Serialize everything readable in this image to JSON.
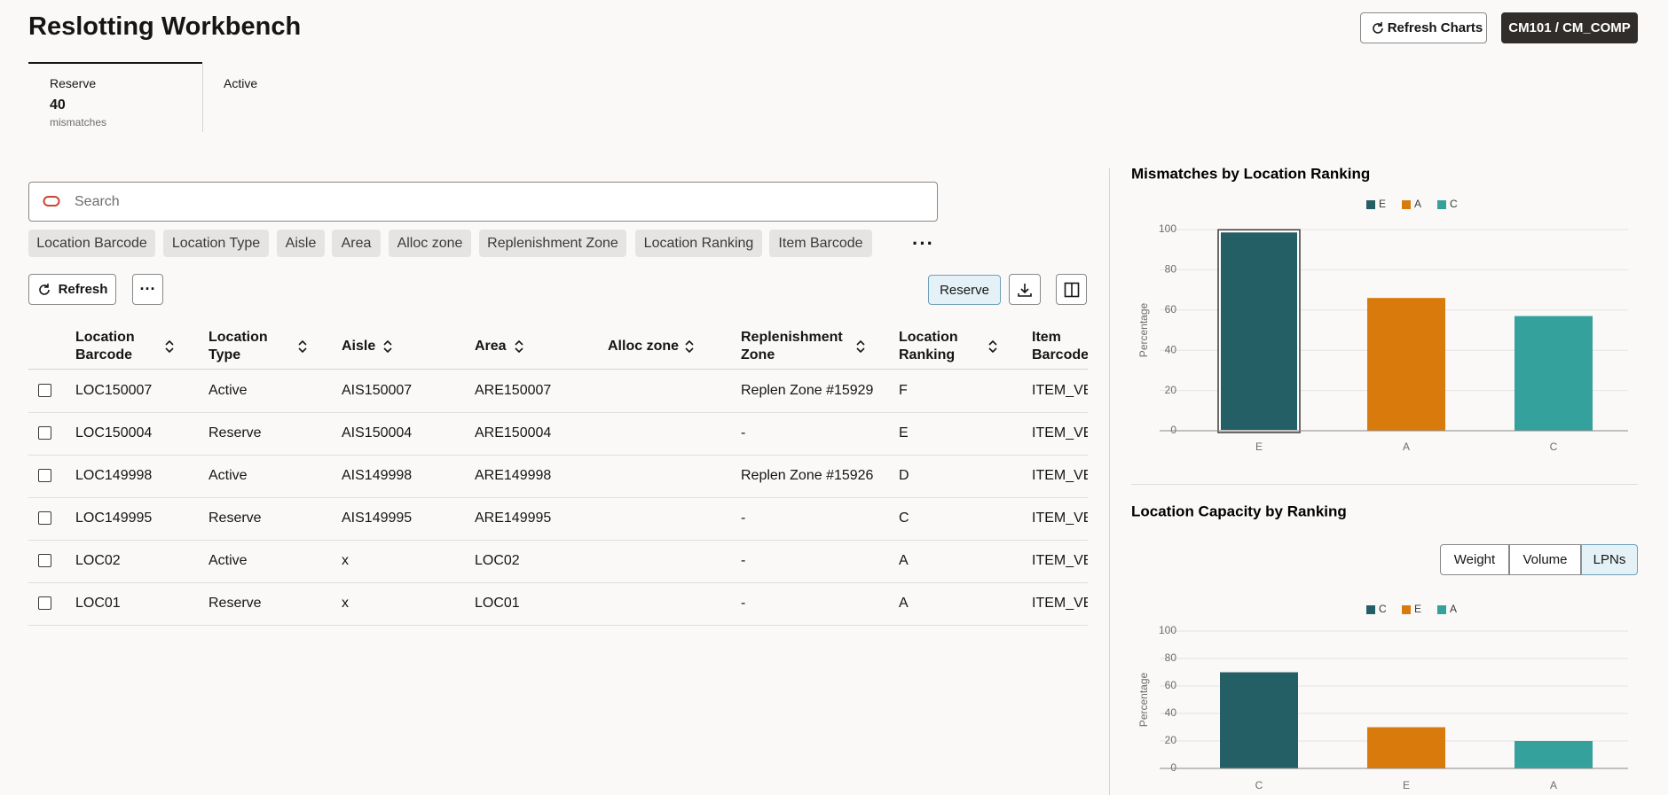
{
  "header": {
    "title": "Reslotting Workbench",
    "buttons": [
      "Refresh Charts",
      "CM101 / CM_COMP"
    ]
  },
  "tabs": [
    {
      "label": "Reserve",
      "count": 40,
      "unit": "mismatches"
    },
    {
      "label": "Active"
    }
  ],
  "search": {
    "placeholder": "Search"
  },
  "filters": [
    "Location Barcode",
    "Location Type",
    "Aisle",
    "Area",
    "Alloc zone",
    "Replenishment Zone",
    "Location Ranking",
    "Item Barcode"
  ],
  "toolbar": {
    "refresh": "Refresh",
    "reserve": "Reserve"
  },
  "table": {
    "columns": [
      "Location Barcode",
      "Location Type",
      "Aisle",
      "Area",
      "Alloc zone",
      "Replenishment Zone",
      "Location Ranking",
      "Item Barcode"
    ],
    "rows": [
      [
        "LOC150007",
        "Active",
        "AIS150007",
        "ARE150007",
        null,
        "Replen Zone #15929",
        "F",
        "ITEM_VE"
      ],
      [
        "LOC150004",
        "Reserve",
        "AIS150004",
        "ARE150004",
        null,
        "-",
        "E",
        "ITEM_VE"
      ],
      [
        "LOC149998",
        "Active",
        "AIS149998",
        "ARE149998",
        null,
        "Replen Zone #15926",
        "D",
        "ITEM_VE"
      ],
      [
        "LOC149995",
        "Reserve",
        "AIS149995",
        "ARE149995",
        null,
        "-",
        "C",
        "ITEM_VE"
      ],
      [
        "LOC02",
        "Active",
        "x",
        "LOC02",
        null,
        "-",
        "A",
        "ITEM_VE"
      ],
      [
        "LOC01",
        "Reserve",
        "x",
        "LOC01",
        null,
        "-",
        "A",
        "ITEM_VE"
      ]
    ]
  },
  "chart_data": [
    {
      "type": "bar",
      "title": "Mismatches by Location Ranking",
      "categories": [
        "E",
        "A",
        "C"
      ],
      "values": [
        99,
        66,
        57
      ],
      "colors": [
        "#255f66",
        "#d97b0c",
        "#35a19c"
      ],
      "y_label": "Percentage",
      "ylim": [
        0,
        100
      ],
      "yticks": [
        0,
        20,
        40,
        60,
        80,
        100
      ],
      "grid": true,
      "selected_category": "E"
    },
    {
      "type": "bar",
      "title": "Location Capacity by Ranking",
      "categories": [
        "C",
        "E",
        "A"
      ],
      "values": [
        70,
        30,
        20
      ],
      "colors": [
        "#255f66",
        "#d97b0c",
        "#35a19c"
      ],
      "y_label": "Percentage",
      "ylim": [
        0,
        100
      ],
      "yticks": [
        0,
        20,
        40,
        60,
        80,
        100
      ],
      "grid": true,
      "toggle": {
        "options": [
          "Weight",
          "Volume",
          "LPNs"
        ],
        "selected": "LPNs"
      }
    }
  ]
}
